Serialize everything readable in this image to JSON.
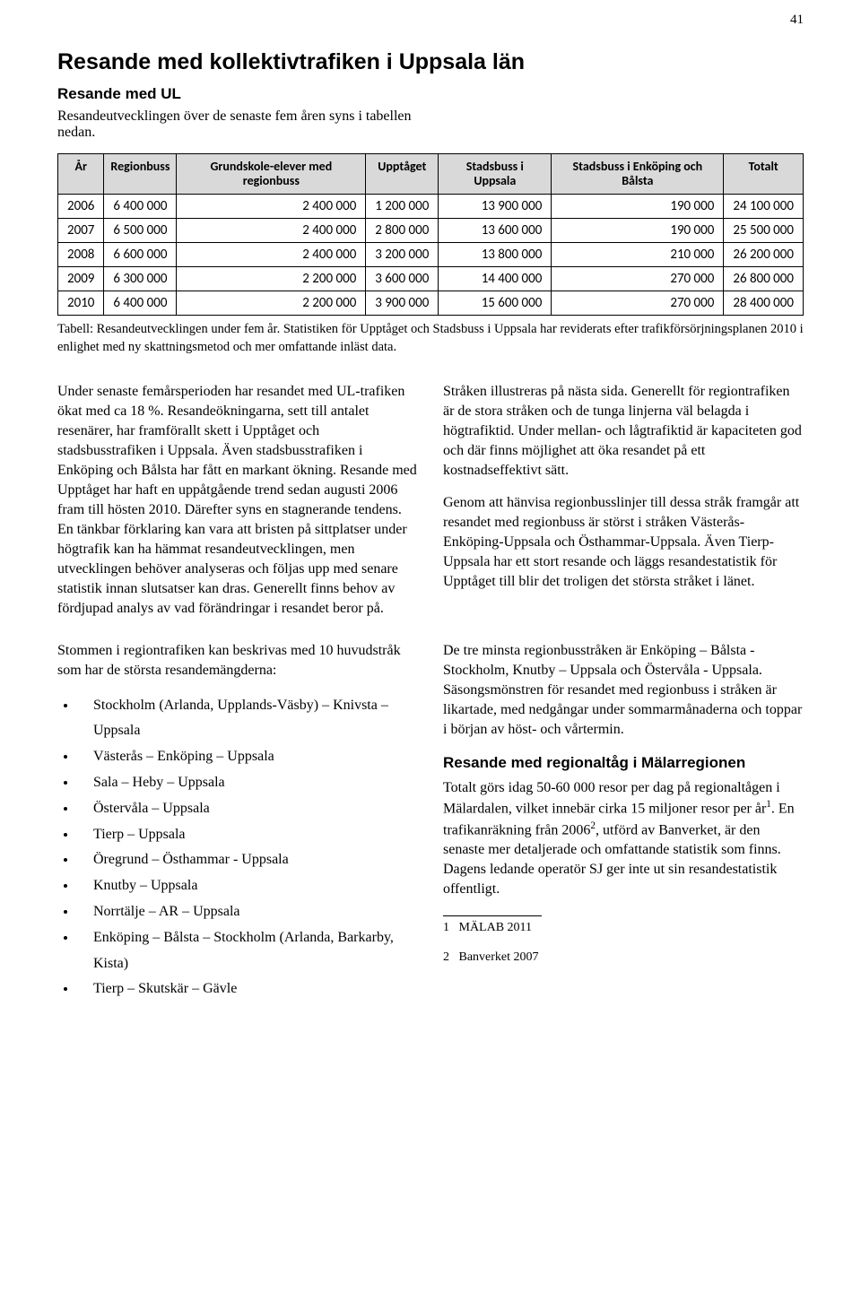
{
  "page_number": "41",
  "title": "Resande med kollektivtrafiken i Uppsala län",
  "section1_heading": "Resande med UL",
  "section1_intro": "Resandeutvecklingen över de senaste fem åren syns i tabellen nedan.",
  "table": {
    "header_bg": "#d9d9d9",
    "border_color": "#000000",
    "columns": [
      "År",
      "Regionbuss",
      "Grundskole-elever med regionbuss",
      "Upptåget",
      "Stadsbuss i Uppsala",
      "Stadsbuss i Enköping och Bålsta",
      "Totalt"
    ],
    "rows": [
      [
        "2006",
        "6 400 000",
        "2 400 000",
        "1 200 000",
        "13 900 000",
        "190 000",
        "24 100 000"
      ],
      [
        "2007",
        "6 500 000",
        "2 400 000",
        "2 800 000",
        "13 600 000",
        "190 000",
        "25 500 000"
      ],
      [
        "2008",
        "6 600 000",
        "2 400 000",
        "3 200 000",
        "13 800 000",
        "210 000",
        "26 200 000"
      ],
      [
        "2009",
        "6 300 000",
        "2 200 000",
        "3 600 000",
        "14 400 000",
        "270 000",
        "26 800 000"
      ],
      [
        "2010",
        "6 400 000",
        "2 200 000",
        "3 900 000",
        "15 600 000",
        "270 000",
        "28 400 000"
      ]
    ]
  },
  "caption": "Tabell: Resandeutvecklingen under fem år. Statistiken för Upptåget och Stadsbuss i Uppsala har reviderats efter trafikförsörjningsplanen 2010 i enlighet med ny skattningsmetod och mer omfattande inläst data.",
  "para_block1_left": "Under senaste femårsperioden har resandet med UL-trafiken ökat med ca 18 %. Resandeökningarna, sett till antalet resenärer, har framförallt skett i Upptåget och stadsbusstrafiken i Uppsala. Även stadsbusstrafiken i Enköping och Bålsta har fått en markant ökning. Resande med Upptåget har haft en uppåtgående trend sedan augusti 2006 fram till hösten 2010. Därefter syns en stagnerande tendens. En tänkbar förklaring kan vara att bristen på sittplatser under högtrafik kan ha hämmat resandeutvecklingen, men utvecklingen behöver analyseras och följas upp med senare statistik innan slutsatser kan dras. Generellt finns behov av fördjupad analys av vad förändringar i resandet beror på.",
  "para_block1_right_a": "Stråken illustreras på nästa sida. Generellt för regiontrafiken är de stora stråken och de tunga linjerna väl belagda i högtrafiktid. Under mellan- och lågtrafiktid är kapaciteten god och där finns möjlighet att öka resandet på ett kostnadseffektivt sätt.",
  "para_block1_right_b": "Genom att hänvisa regionbusslinjer till dessa stråk framgår att resandet med regionbuss är störst i stråken Västerås-Enköping-Uppsala och Östhammar-Uppsala. Även Tierp-Uppsala har ett stort resande och läggs resandestatistik för Upptåget till blir det troligen det största stråket i länet.",
  "routes_intro": "Stommen i regiontrafiken kan beskrivas med 10 huvudstråk som har de största resandemängderna:",
  "routes": [
    "Stockholm (Arlanda, Upplands-Väsby) – Knivsta – Uppsala",
    "Västerås – Enköping – Uppsala",
    "Sala – Heby – Uppsala",
    "Östervåla – Uppsala",
    "Tierp – Uppsala",
    "Öregrund – Östhammar - Uppsala",
    "Knutby – Uppsala",
    "Norrtälje – AR – Uppsala",
    "Enköping – Bålsta – Stockholm (Arlanda, Barkarby, Kista)",
    "Tierp – Skutskär – Gävle"
  ],
  "para_block2_right_a": "De tre minsta regionbusstråken är Enköping – Bålsta - Stockholm, Knutby – Uppsala och Östervåla - Uppsala. Säsongsmönstren för resandet med regionbuss i stråken är likartade, med nedgångar under sommarmånaderna och toppar i början av höst- och vårtermin.",
  "section2_heading": "Resande med regionaltåg i Mälarregionen",
  "para_block2_right_b_pre": "Totalt görs idag 50-60 000 resor per dag på regionaltågen i Mälardalen, vilket innebär cirka 15 miljoner resor per år",
  "para_block2_right_b_mid": ". En trafikanräkning från 2006",
  "para_block2_right_b_post": ", utförd av Banverket, är den senaste mer detaljerade och omfattande statistik som finns. Dagens ledande operatör SJ ger inte ut sin resandestatistik offentligt.",
  "footnotes": {
    "1": "MÄLAB 2011",
    "2": "Banverket 2007"
  }
}
